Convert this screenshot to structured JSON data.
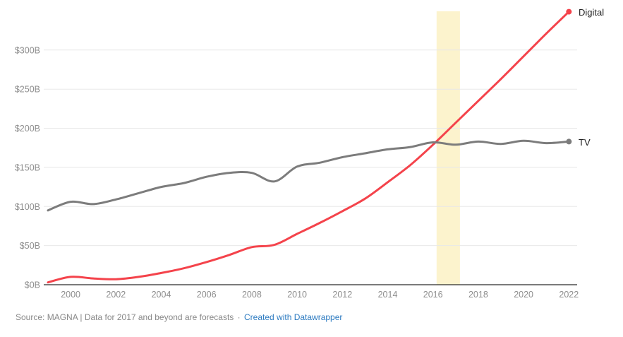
{
  "chart_data": {
    "type": "line",
    "x": [
      1999,
      2000,
      2001,
      2002,
      2003,
      2004,
      2005,
      2006,
      2007,
      2008,
      2009,
      2010,
      2011,
      2012,
      2013,
      2014,
      2015,
      2016,
      2017,
      2018,
      2019,
      2020,
      2021,
      2022
    ],
    "series": [
      {
        "name": "Digital",
        "color": "#f4434b",
        "values": [
          3,
          10,
          8,
          7,
          10,
          15,
          21,
          29,
          38,
          48,
          51,
          65,
          79,
          94,
          110,
          131,
          153,
          179,
          207,
          235,
          263,
          292,
          321,
          349
        ]
      },
      {
        "name": "TV",
        "color": "#7c7c7c",
        "values": [
          95,
          106,
          103,
          109,
          117,
          125,
          130,
          138,
          143,
          143,
          132,
          151,
          156,
          163,
          168,
          173,
          176,
          182,
          179,
          183,
          180,
          184,
          181,
          183
        ]
      }
    ],
    "title": "",
    "xlabel": "",
    "ylabel": "",
    "unit": "$B",
    "ylim": [
      0,
      350
    ],
    "grid": "horizontal",
    "y_ticks": [
      {
        "value": 0,
        "label": "$0B"
      },
      {
        "value": 50,
        "label": "$50B"
      },
      {
        "value": 100,
        "label": "$100B"
      },
      {
        "value": 150,
        "label": "$150B"
      },
      {
        "value": 200,
        "label": "$200B"
      },
      {
        "value": 250,
        "label": "$250B"
      },
      {
        "value": 300,
        "label": "$300B"
      }
    ],
    "x_ticks": [
      2000,
      2002,
      2004,
      2006,
      2008,
      2010,
      2012,
      2014,
      2016,
      2018,
      2020,
      2022
    ],
    "highlight_band": {
      "from": 2016.16,
      "to": 2017.19,
      "color": "#fcf3cd"
    },
    "colors": {
      "gridline": "#e8e8e8",
      "axis_line": "#2b2b2b",
      "tick_label": "#8e8e8e",
      "series_label": "#1f1f1f"
    },
    "legend_position": "end-of-line",
    "end_dots": true
  },
  "footer": {
    "source_label": "Source:",
    "source_text": "MAGNA | Data for 2017 and beyond are forecasts",
    "separator": "·",
    "attribution_link": "Created with Datawrapper",
    "link_color": "#2d7bc1"
  }
}
